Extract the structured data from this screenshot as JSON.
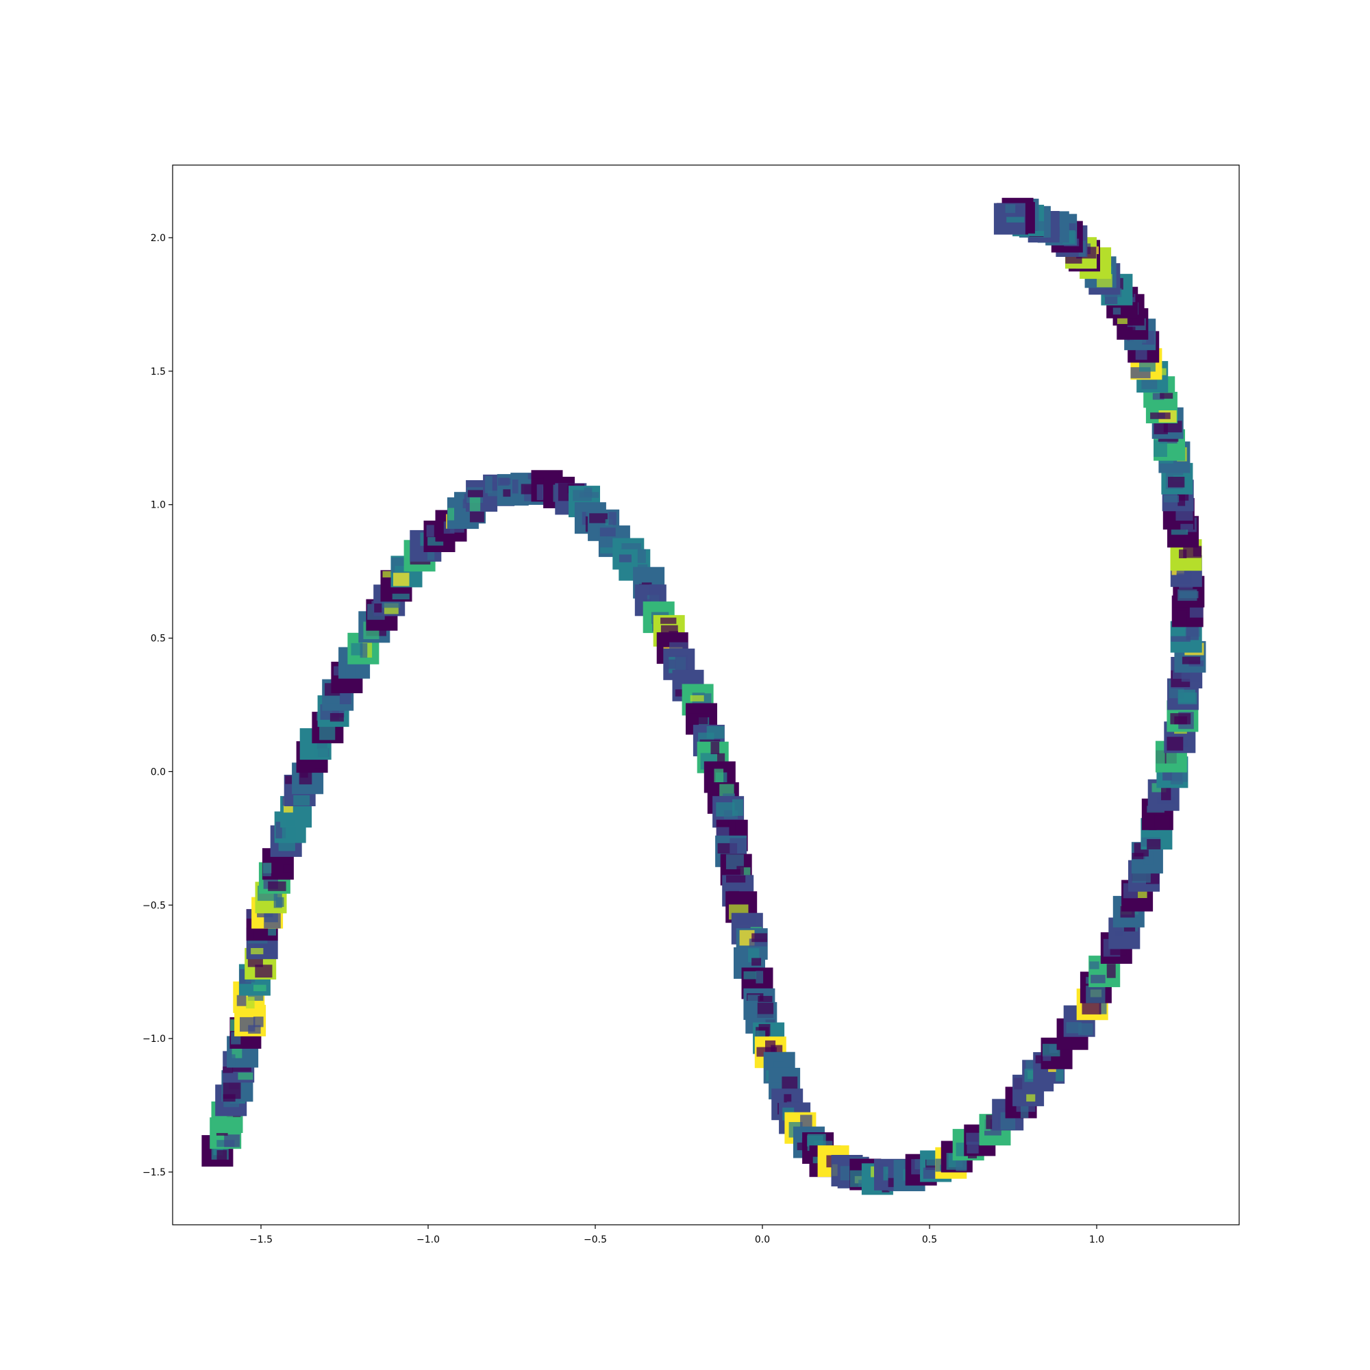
{
  "chart_data": {
    "type": "scatter",
    "title": "",
    "xlabel": "",
    "ylabel": "",
    "marker": "image-thumbnail",
    "colormap": "viridis",
    "grid": false,
    "legend": "none",
    "xlim": [
      -1.77,
      1.42
    ],
    "ylim": [
      -1.7,
      2.27
    ],
    "xticks": [
      -1.5,
      -1.0,
      -0.5,
      0.0,
      0.5,
      1.0
    ],
    "xtick_labels": [
      "−1.5",
      "−1.0",
      "−0.5",
      "0.0",
      "0.5",
      "1.0"
    ],
    "yticks": [
      -1.5,
      -1.0,
      -0.5,
      0.0,
      0.5,
      1.0,
      1.5,
      2.0
    ],
    "ytick_labels": [
      "−1.5",
      "−1.0",
      "−0.5",
      "0.0",
      "0.5",
      "1.0",
      "1.5",
      "2.0"
    ],
    "series": [
      {
        "x": [
          -1.62,
          -1.6,
          -1.58,
          -1.56,
          -1.54,
          -1.52,
          -1.5,
          -1.48,
          -1.46,
          -1.43,
          -1.4,
          -1.37,
          -1.33,
          -1.29,
          -1.24,
          -1.19,
          -1.14,
          -1.09,
          -1.03,
          -0.97,
          -0.9,
          -0.83,
          -0.75,
          -0.68,
          -0.61,
          -0.54,
          -0.47,
          -0.41,
          -0.35,
          -0.3,
          -0.26,
          -0.22,
          -0.18,
          -0.15,
          -0.12,
          -0.1,
          -0.08,
          -0.06,
          -0.04,
          -0.02,
          0.0,
          0.03,
          0.06,
          0.1,
          0.14,
          0.19,
          0.25,
          0.31,
          0.38,
          0.45,
          0.52,
          0.59,
          0.66,
          0.73,
          0.8,
          0.86,
          0.92,
          0.98,
          1.03,
          1.08,
          1.12,
          1.16,
          1.19,
          1.22,
          1.24,
          1.26,
          1.27,
          1.27,
          1.27,
          1.26,
          1.25,
          1.23,
          1.21,
          1.18,
          1.15,
          1.12,
          1.09,
          1.05,
          1.01,
          0.97,
          0.93,
          0.89,
          0.84,
          0.8,
          0.77,
          0.74
        ],
        "y": [
          -1.41,
          -1.3,
          -1.18,
          -1.05,
          -0.92,
          -0.78,
          -0.65,
          -0.52,
          -0.4,
          -0.27,
          -0.14,
          -0.02,
          0.11,
          0.23,
          0.35,
          0.47,
          0.59,
          0.7,
          0.8,
          0.89,
          0.97,
          1.03,
          1.06,
          1.07,
          1.05,
          1.0,
          0.92,
          0.82,
          0.71,
          0.59,
          0.46,
          0.33,
          0.19,
          0.05,
          -0.09,
          -0.23,
          -0.37,
          -0.51,
          -0.65,
          -0.79,
          -0.93,
          -1.06,
          -1.18,
          -1.29,
          -1.38,
          -1.45,
          -1.49,
          -1.51,
          -1.52,
          -1.51,
          -1.49,
          -1.44,
          -1.37,
          -1.29,
          -1.2,
          -1.1,
          -0.99,
          -0.87,
          -0.74,
          -0.6,
          -0.46,
          -0.31,
          -0.16,
          -0.01,
          0.14,
          0.29,
          0.44,
          0.59,
          0.74,
          0.89,
          1.03,
          1.17,
          1.3,
          1.42,
          1.53,
          1.63,
          1.72,
          1.8,
          1.87,
          1.93,
          1.98,
          2.02,
          2.05,
          2.07,
          2.08,
          2.08
        ]
      }
    ]
  }
}
